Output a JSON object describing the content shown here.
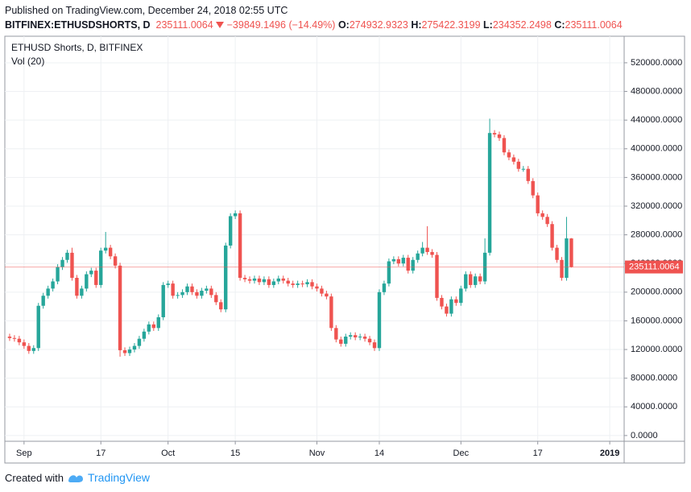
{
  "header": {
    "published": "Published on TradingView.com, December 24, 2018 02:55 UTC",
    "symbol": "BITFINEX:ETHUSDSHORTS, D",
    "change": "−39849.1496 (−14.49%)",
    "o": "O:",
    "h": "H:",
    "l": "L:",
    "c": "C:"
  },
  "footer": {
    "created": "Created with",
    "brand": "TradingView"
  },
  "chart_data": {
    "type": "candlestick",
    "title": "ETHUSD Shorts, D, BITFINEX",
    "subtitle": "Vol (20)",
    "up_color": "#26a69a",
    "down_color": "#ef5350",
    "grid": true,
    "xlim": [
      "2018-08-28",
      "2019-01-04"
    ],
    "ylim": [
      -8000,
      557000
    ],
    "yticks": [
      {
        "value": 0,
        "label": "0.0000"
      },
      {
        "value": 40000,
        "label": "40000.0000"
      },
      {
        "value": 80000,
        "label": "80000.0000"
      },
      {
        "value": 120000,
        "label": "120000.0000"
      },
      {
        "value": 160000,
        "label": "160000.0000"
      },
      {
        "value": 200000,
        "label": "200000.0000"
      },
      {
        "value": 240000,
        "label": "240000.0000"
      },
      {
        "value": 280000,
        "label": "280000.0000"
      },
      {
        "value": 320000,
        "label": "320000.0000"
      },
      {
        "value": 360000,
        "label": "360000.0000"
      },
      {
        "value": 400000,
        "label": "400000.0000"
      },
      {
        "value": 440000,
        "label": "440000.0000"
      },
      {
        "value": 480000,
        "label": "480000.0000"
      },
      {
        "value": 520000,
        "label": "520000.0000"
      }
    ],
    "xticks": [
      {
        "value": "2018-09-01",
        "label": "Sep"
      },
      {
        "value": "2018-09-17",
        "label": "17"
      },
      {
        "value": "2018-10-01",
        "label": "Oct"
      },
      {
        "value": "2018-10-15",
        "label": "15"
      },
      {
        "value": "2018-11-01",
        "label": "Nov"
      },
      {
        "value": "2018-11-14",
        "label": "14"
      },
      {
        "value": "2018-12-01",
        "label": "Dec"
      },
      {
        "value": "2018-12-17",
        "label": "17"
      },
      {
        "value": "2019-01-01",
        "label": "2019"
      }
    ],
    "x": [
      "2018-08-29",
      "2018-08-30",
      "2018-08-31",
      "2018-09-01",
      "2018-09-02",
      "2018-09-03",
      "2018-09-04",
      "2018-09-05",
      "2018-09-06",
      "2018-09-07",
      "2018-09-08",
      "2018-09-09",
      "2018-09-10",
      "2018-09-11",
      "2018-09-12",
      "2018-09-13",
      "2018-09-14",
      "2018-09-15",
      "2018-09-16",
      "2018-09-17",
      "2018-09-18",
      "2018-09-19",
      "2018-09-20",
      "2018-09-21",
      "2018-09-22",
      "2018-09-23",
      "2018-09-24",
      "2018-09-25",
      "2018-09-26",
      "2018-09-27",
      "2018-09-28",
      "2018-09-29",
      "2018-09-30",
      "2018-10-01",
      "2018-10-02",
      "2018-10-03",
      "2018-10-04",
      "2018-10-05",
      "2018-10-06",
      "2018-10-07",
      "2018-10-08",
      "2018-10-09",
      "2018-10-10",
      "2018-10-11",
      "2018-10-12",
      "2018-10-13",
      "2018-10-14",
      "2018-10-15",
      "2018-10-16",
      "2018-10-17",
      "2018-10-18",
      "2018-10-19",
      "2018-10-20",
      "2018-10-21",
      "2018-10-22",
      "2018-10-23",
      "2018-10-24",
      "2018-10-25",
      "2018-10-26",
      "2018-10-27",
      "2018-10-28",
      "2018-10-29",
      "2018-10-30",
      "2018-10-31",
      "2018-11-01",
      "2018-11-02",
      "2018-11-03",
      "2018-11-04",
      "2018-11-05",
      "2018-11-06",
      "2018-11-07",
      "2018-11-08",
      "2018-11-09",
      "2018-11-10",
      "2018-11-11",
      "2018-11-12",
      "2018-11-13",
      "2018-11-14",
      "2018-11-15",
      "2018-11-16",
      "2018-11-17",
      "2018-11-18",
      "2018-11-19",
      "2018-11-20",
      "2018-11-21",
      "2018-11-22",
      "2018-11-23",
      "2018-11-24",
      "2018-11-25",
      "2018-11-26",
      "2018-11-27",
      "2018-11-28",
      "2018-11-29",
      "2018-11-30",
      "2018-12-01",
      "2018-12-02",
      "2018-12-03",
      "2018-12-04",
      "2018-12-05",
      "2018-12-06",
      "2018-12-07",
      "2018-12-08",
      "2018-12-09",
      "2018-12-10",
      "2018-12-11",
      "2018-12-12",
      "2018-12-13",
      "2018-12-14",
      "2018-12-15",
      "2018-12-16",
      "2018-12-17",
      "2018-12-18",
      "2018-12-19",
      "2018-12-20",
      "2018-12-21",
      "2018-12-22",
      "2018-12-23",
      "2018-12-24"
    ],
    "open": [
      138000,
      136000,
      135000,
      130000,
      125000,
      118000,
      122000,
      181000,
      195000,
      205000,
      215000,
      235000,
      245000,
      255000,
      220000,
      195000,
      205000,
      225000,
      230000,
      210000,
      258000,
      262000,
      250000,
      237000,
      119000,
      115000,
      120000,
      125000,
      135000,
      145000,
      155000,
      150000,
      165000,
      210000,
      212000,
      195000,
      196000,
      200000,
      208000,
      200000,
      195000,
      202000,
      205000,
      196000,
      186000,
      176000,
      265000,
      306000,
      310000,
      220000,
      218000,
      216000,
      219000,
      214000,
      218000,
      210000,
      215000,
      219000,
      216000,
      212000,
      210000,
      212000,
      211000,
      214000,
      208000,
      205000,
      198000,
      194000,
      150000,
      134000,
      128000,
      138000,
      140000,
      137000,
      138000,
      135000,
      130000,
      122000,
      200000,
      212000,
      243000,
      246000,
      240000,
      248000,
      230000,
      245000,
      254000,
      262000,
      256000,
      252000,
      192000,
      180000,
      170000,
      190000,
      185000,
      205000,
      225000,
      210000,
      222000,
      215000,
      255000,
      422000,
      420000,
      415000,
      395000,
      388000,
      382000,
      372000,
      372000,
      355000,
      335000,
      310000,
      305000,
      295000,
      262000,
      245000,
      220000,
      274932.9323
    ],
    "high": [
      142000,
      140000,
      139000,
      134000,
      129000,
      126000,
      185000,
      199000,
      209000,
      219000,
      239000,
      249000,
      259000,
      262000,
      224000,
      209000,
      229000,
      234000,
      234000,
      262000,
      284000,
      266000,
      254000,
      241000,
      123000,
      124000,
      129000,
      139000,
      149000,
      159000,
      159000,
      169000,
      214000,
      216000,
      216000,
      200000,
      204000,
      212000,
      212000,
      204000,
      206000,
      209000,
      209000,
      200000,
      190000,
      269000,
      310000,
      314000,
      314000,
      224000,
      222000,
      223000,
      223000,
      222000,
      222000,
      219000,
      223000,
      223000,
      220000,
      216000,
      216000,
      216000,
      218000,
      218000,
      212000,
      209000,
      202000,
      198000,
      154000,
      138000,
      142000,
      144000,
      144000,
      142000,
      142000,
      139000,
      134000,
      204000,
      216000,
      247000,
      250000,
      250000,
      252000,
      252000,
      249000,
      258000,
      270000,
      292000,
      260000,
      256000,
      196000,
      184000,
      194000,
      194000,
      209000,
      229000,
      229000,
      226000,
      226000,
      275000,
      442000,
      426000,
      424000,
      419000,
      399000,
      392000,
      386000,
      376000,
      376000,
      359000,
      339000,
      314000,
      309000,
      299000,
      266000,
      249000,
      305000,
      275422.3199
    ],
    "low": [
      132000,
      131000,
      126000,
      121000,
      114000,
      114000,
      118000,
      177000,
      191000,
      201000,
      211000,
      231000,
      241000,
      216000,
      191000,
      191000,
      201000,
      221000,
      206000,
      206000,
      254000,
      246000,
      233000,
      110000,
      111000,
      111000,
      116000,
      121000,
      131000,
      141000,
      146000,
      146000,
      161000,
      206000,
      191000,
      191000,
      192000,
      196000,
      196000,
      191000,
      191000,
      198000,
      192000,
      182000,
      172000,
      172000,
      261000,
      302000,
      216000,
      214000,
      212000,
      212000,
      210000,
      210000,
      206000,
      206000,
      211000,
      212000,
      208000,
      206000,
      206000,
      207000,
      207000,
      204000,
      201000,
      194000,
      190000,
      146000,
      130000,
      124000,
      124000,
      134000,
      133000,
      133000,
      131000,
      126000,
      118000,
      118000,
      196000,
      208000,
      239000,
      236000,
      236000,
      226000,
      226000,
      241000,
      250000,
      252000,
      248000,
      188000,
      176000,
      166000,
      166000,
      181000,
      181000,
      201000,
      206000,
      206000,
      211000,
      211000,
      251000,
      416000,
      411000,
      391000,
      384000,
      378000,
      368000,
      368000,
      351000,
      331000,
      306000,
      301000,
      291000,
      258000,
      241000,
      216000,
      216000,
      234352.2498
    ],
    "close": [
      136000,
      135000,
      130000,
      125000,
      118000,
      122000,
      181000,
      195000,
      205000,
      215000,
      235000,
      245000,
      255000,
      220000,
      195000,
      205000,
      225000,
      230000,
      210000,
      258000,
      262000,
      250000,
      237000,
      119000,
      115000,
      120000,
      125000,
      135000,
      145000,
      155000,
      150000,
      165000,
      210000,
      212000,
      195000,
      196000,
      200000,
      208000,
      200000,
      195000,
      202000,
      205000,
      196000,
      186000,
      176000,
      265000,
      306000,
      310000,
      220000,
      218000,
      216000,
      219000,
      214000,
      218000,
      210000,
      215000,
      219000,
      216000,
      212000,
      210000,
      212000,
      211000,
      214000,
      208000,
      205000,
      198000,
      194000,
      150000,
      134000,
      128000,
      138000,
      140000,
      137000,
      138000,
      135000,
      130000,
      122000,
      200000,
      212000,
      243000,
      246000,
      240000,
      248000,
      230000,
      245000,
      254000,
      262000,
      256000,
      252000,
      192000,
      180000,
      170000,
      190000,
      185000,
      205000,
      225000,
      210000,
      222000,
      215000,
      255000,
      422000,
      420000,
      415000,
      395000,
      388000,
      382000,
      372000,
      372000,
      355000,
      335000,
      310000,
      305000,
      295000,
      262000,
      245000,
      220000,
      275000,
      235111.0064
    ]
  }
}
